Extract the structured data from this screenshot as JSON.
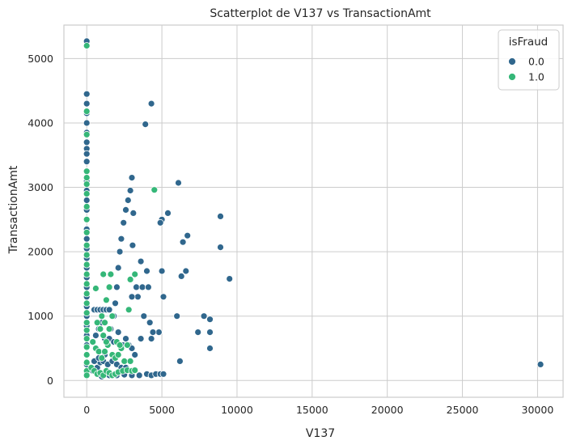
{
  "chart_data": {
    "type": "scatter",
    "title": "Scatterplot de V137 vs TransactionAmt",
    "xlabel": "V137",
    "ylabel": "TransactionAmt",
    "xlim": [
      -1520,
      31700
    ],
    "ylim": [
      -260,
      5520
    ],
    "x_ticks": [
      0,
      5000,
      10000,
      15000,
      20000,
      25000,
      30000
    ],
    "y_ticks": [
      0,
      1000,
      2000,
      3000,
      4000,
      5000
    ],
    "x_tick_labels": [
      "0",
      "5000",
      "10000",
      "15000",
      "20000",
      "25000",
      "30000"
    ],
    "y_tick_labels": [
      "0",
      "1000",
      "2000",
      "3000",
      "4000",
      "5000"
    ],
    "grid": true,
    "legend": {
      "title": "isFraud",
      "position": "top-right",
      "entries": [
        "0.0",
        "1.0"
      ]
    },
    "colors": {
      "0.0": "#30678d",
      "1.0": "#35b778"
    },
    "series": [
      {
        "name": "0.0",
        "points": [
          [
            0,
            5270
          ],
          [
            0,
            4450
          ],
          [
            0,
            4300
          ],
          [
            0,
            4150
          ],
          [
            0,
            4000
          ],
          [
            0,
            3850
          ],
          [
            0,
            3700
          ],
          [
            0,
            3600
          ],
          [
            0,
            3520
          ],
          [
            0,
            3400
          ],
          [
            0,
            3250
          ],
          [
            0,
            3100
          ],
          [
            0,
            2950
          ],
          [
            0,
            2800
          ],
          [
            0,
            2650
          ],
          [
            0,
            2500
          ],
          [
            0,
            2350
          ],
          [
            0,
            2200
          ],
          [
            0,
            2050
          ],
          [
            0,
            1900
          ],
          [
            0,
            1750
          ],
          [
            0,
            1600
          ],
          [
            0,
            1450
          ],
          [
            0,
            1300
          ],
          [
            0,
            1150
          ],
          [
            0,
            1000
          ],
          [
            0,
            850
          ],
          [
            0,
            700
          ],
          [
            0,
            550
          ],
          [
            0,
            400
          ],
          [
            0,
            250
          ],
          [
            0,
            120
          ],
          [
            400,
            150
          ],
          [
            700,
            200
          ],
          [
            900,
            280
          ],
          [
            1200,
            400
          ],
          [
            1400,
            550
          ],
          [
            1600,
            800
          ],
          [
            1800,
            1000
          ],
          [
            1900,
            1200
          ],
          [
            2000,
            1450
          ],
          [
            2100,
            1750
          ],
          [
            2200,
            2000
          ],
          [
            2300,
            2200
          ],
          [
            2450,
            2450
          ],
          [
            2600,
            2650
          ],
          [
            2750,
            2800
          ],
          [
            2900,
            2950
          ],
          [
            3000,
            3150
          ],
          [
            500,
            1100
          ],
          [
            700,
            1100
          ],
          [
            900,
            1100
          ],
          [
            1100,
            1100
          ],
          [
            1300,
            1100
          ],
          [
            1500,
            1100
          ],
          [
            600,
            700
          ],
          [
            800,
            800
          ],
          [
            1000,
            900
          ],
          [
            1200,
            650
          ],
          [
            1500,
            650
          ],
          [
            1800,
            600
          ],
          [
            2100,
            750
          ],
          [
            2400,
            550
          ],
          [
            2600,
            650
          ],
          [
            2800,
            550
          ],
          [
            3000,
            500
          ],
          [
            3200,
            400
          ],
          [
            500,
            300
          ],
          [
            800,
            350
          ],
          [
            1100,
            300
          ],
          [
            1400,
            250
          ],
          [
            1700,
            300
          ],
          [
            2000,
            250
          ],
          [
            2300,
            200
          ],
          [
            2600,
            200
          ],
          [
            1000,
            60
          ],
          [
            1500,
            80
          ],
          [
            2000,
            80
          ],
          [
            2500,
            90
          ],
          [
            3000,
            80
          ],
          [
            3500,
            80
          ],
          [
            4000,
            100
          ],
          [
            4300,
            80
          ],
          [
            4600,
            100
          ],
          [
            4900,
            100
          ],
          [
            5100,
            100
          ],
          [
            3200,
            1650
          ],
          [
            3400,
            1300
          ],
          [
            3600,
            1850
          ],
          [
            3000,
            1300
          ],
          [
            3300,
            1450
          ],
          [
            3800,
            1000
          ],
          [
            3700,
            1450
          ],
          [
            4100,
            1450
          ],
          [
            4200,
            900
          ],
          [
            4300,
            650
          ],
          [
            3600,
            650
          ],
          [
            4800,
            750
          ],
          [
            4000,
            1700
          ],
          [
            4300,
            4300
          ],
          [
            3900,
            3980
          ],
          [
            3100,
            2600
          ],
          [
            3050,
            2100
          ],
          [
            5000,
            2500
          ],
          [
            5400,
            2600
          ],
          [
            4900,
            2450
          ],
          [
            5000,
            1700
          ],
          [
            5100,
            1300
          ],
          [
            6000,
            1000
          ],
          [
            6100,
            3070
          ],
          [
            6300,
            1620
          ],
          [
            6400,
            2150
          ],
          [
            6600,
            1700
          ],
          [
            6700,
            2250
          ],
          [
            7400,
            750
          ],
          [
            7800,
            1000
          ],
          [
            8200,
            950
          ],
          [
            8200,
            750
          ],
          [
            8200,
            500
          ],
          [
            8900,
            2550
          ],
          [
            8900,
            2070
          ],
          [
            9500,
            1580
          ],
          [
            6200,
            300
          ],
          [
            4400,
            750
          ],
          [
            30200,
            250
          ]
        ]
      },
      {
        "name": "1.0",
        "points": [
          [
            0,
            5200
          ],
          [
            0,
            4180
          ],
          [
            0,
            3820
          ],
          [
            0,
            3250
          ],
          [
            0,
            3150
          ],
          [
            0,
            3050
          ],
          [
            0,
            2900
          ],
          [
            0,
            2700
          ],
          [
            0,
            2500
          ],
          [
            0,
            2300
          ],
          [
            0,
            2100
          ],
          [
            0,
            1950
          ],
          [
            0,
            1800
          ],
          [
            0,
            1650
          ],
          [
            0,
            1500
          ],
          [
            0,
            1350
          ],
          [
            0,
            1200
          ],
          [
            0,
            1050
          ],
          [
            0,
            900
          ],
          [
            0,
            780
          ],
          [
            0,
            650
          ],
          [
            0,
            520
          ],
          [
            0,
            400
          ],
          [
            0,
            280
          ],
          [
            0,
            150
          ],
          [
            0,
            80
          ],
          [
            4500,
            2960
          ],
          [
            2800,
            1100
          ],
          [
            2900,
            1570
          ],
          [
            3200,
            1650
          ],
          [
            1100,
            1650
          ],
          [
            600,
            1430
          ],
          [
            1300,
            1250
          ],
          [
            1500,
            1450
          ],
          [
            1600,
            1650
          ],
          [
            1700,
            1000
          ],
          [
            400,
            600
          ],
          [
            600,
            500
          ],
          [
            800,
            450
          ],
          [
            1000,
            350
          ],
          [
            1200,
            450
          ],
          [
            1400,
            550
          ],
          [
            700,
            900
          ],
          [
            900,
            800
          ],
          [
            1100,
            700
          ],
          [
            1300,
            600
          ],
          [
            1500,
            800
          ],
          [
            1700,
            400
          ],
          [
            1900,
            350
          ],
          [
            2100,
            400
          ],
          [
            2300,
            500
          ],
          [
            2500,
            300
          ],
          [
            2700,
            550
          ],
          [
            2900,
            300
          ],
          [
            300,
            200
          ],
          [
            500,
            150
          ],
          [
            700,
            100
          ],
          [
            900,
            120
          ],
          [
            1100,
            80
          ],
          [
            1300,
            150
          ],
          [
            1500,
            120
          ],
          [
            1700,
            80
          ],
          [
            1900,
            100
          ],
          [
            2100,
            130
          ],
          [
            2400,
            150
          ],
          [
            2700,
            160
          ],
          [
            3000,
            150
          ],
          [
            3200,
            160
          ],
          [
            2000,
            600
          ],
          [
            2200,
            550
          ],
          [
            1200,
            900
          ],
          [
            1000,
            1000
          ]
        ]
      }
    ]
  }
}
